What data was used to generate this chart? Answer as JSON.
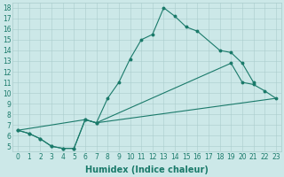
{
  "bg_color": "#cce8e8",
  "line_color": "#1a7a6a",
  "grid_color": "#aacccc",
  "xlabel": "Humidex (Indice chaleur)",
  "xlabel_fontsize": 7,
  "tick_fontsize": 5.5,
  "xlim": [
    -0.5,
    23.5
  ],
  "ylim": [
    4.5,
    18.5
  ],
  "line1_x": [
    0,
    1,
    2,
    3,
    4,
    5,
    6,
    7,
    8,
    9,
    10,
    11,
    12,
    13,
    14,
    15,
    16,
    18,
    19,
    20,
    21
  ],
  "line1_y": [
    6.5,
    6.2,
    5.7,
    5.0,
    4.8,
    4.8,
    7.5,
    7.2,
    9.5,
    11.0,
    13.2,
    15.0,
    15.5,
    18.0,
    17.2,
    16.2,
    15.8,
    14.0,
    13.8,
    12.8,
    11.0
  ],
  "line2_x": [
    0,
    1,
    2,
    3,
    4,
    5,
    6,
    7,
    19,
    20,
    21,
    22,
    23
  ],
  "line2_y": [
    6.5,
    6.2,
    5.7,
    5.0,
    4.8,
    4.8,
    7.5,
    7.2,
    12.8,
    11.0,
    10.8,
    10.2,
    9.5
  ],
  "line3_x": [
    0,
    6,
    7,
    23
  ],
  "line3_y": [
    6.5,
    7.5,
    7.2,
    9.5
  ]
}
